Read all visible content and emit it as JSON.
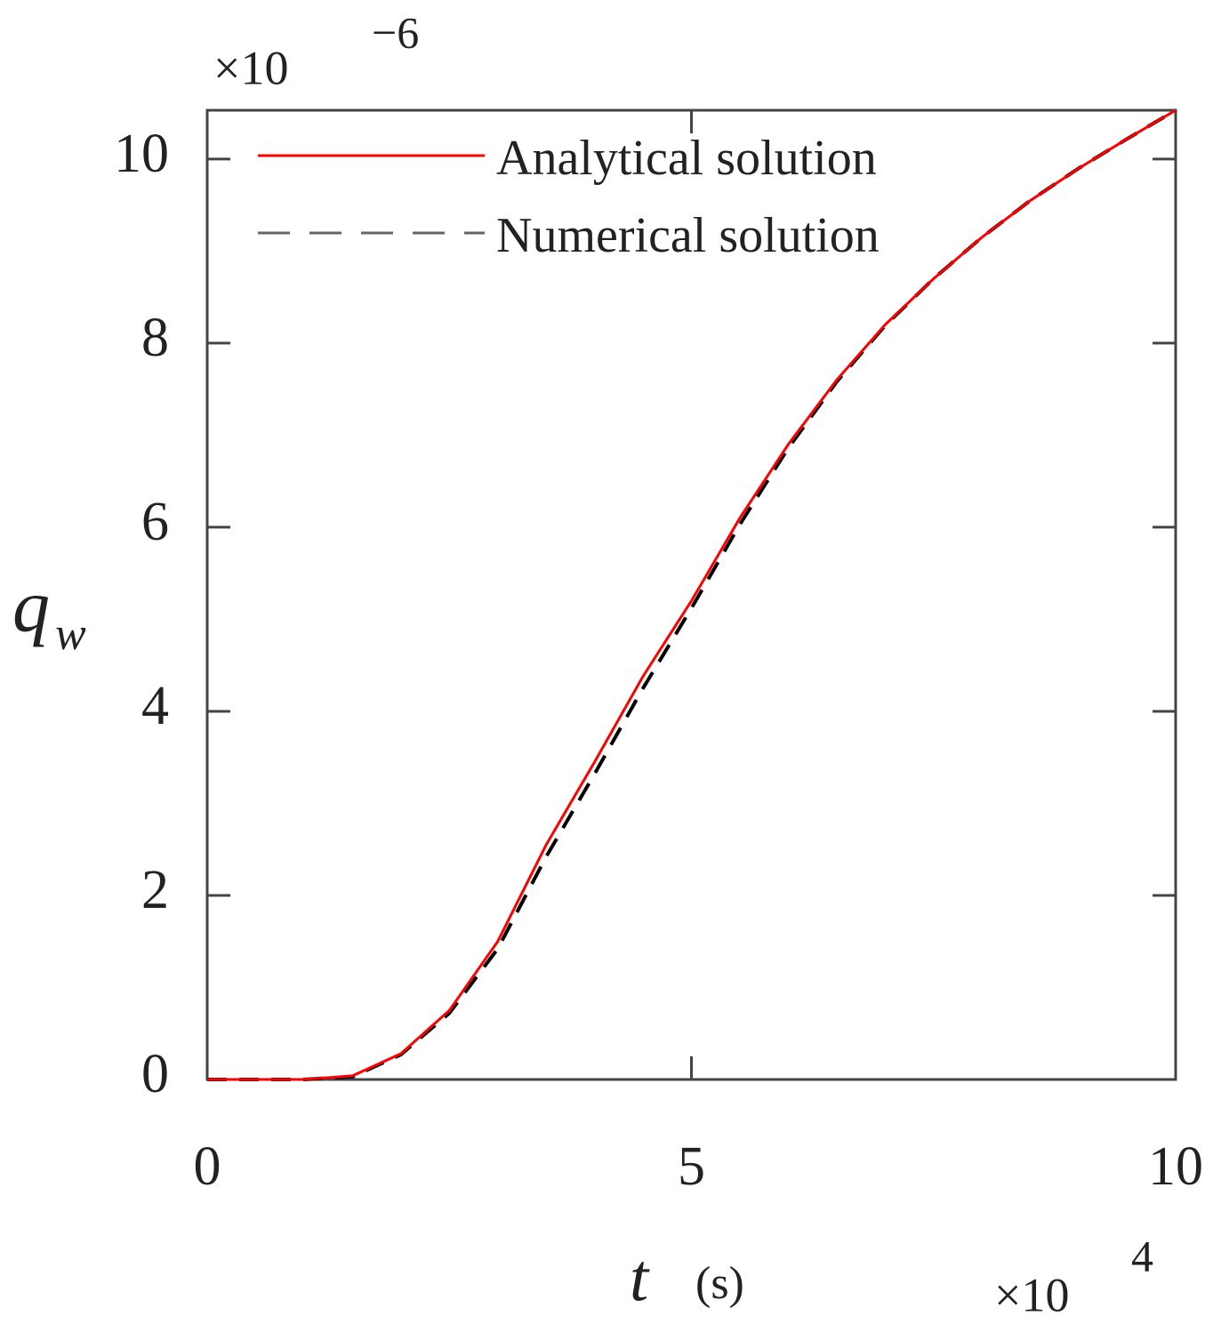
{
  "chart_data": {
    "type": "line",
    "x": [
      0,
      0.5,
      1,
      1.5,
      2,
      2.5,
      3,
      3.5,
      4,
      4.5,
      5,
      5.5,
      6,
      6.5,
      7,
      7.5,
      8,
      8.5,
      9,
      9.5,
      10
    ],
    "series": [
      {
        "name": "Numerical solution",
        "color": "#000000",
        "legend_color": "#666666",
        "linestyle": "dashed",
        "values": [
          0,
          0,
          0,
          0.03,
          0.27,
          0.72,
          1.42,
          2.42,
          3.32,
          4.25,
          5.12,
          6.03,
          6.86,
          7.58,
          8.19,
          8.7,
          9.15,
          9.55,
          9.9,
          10.22,
          10.53
        ]
      },
      {
        "name": "Analytical solution",
        "color": "#ff0000",
        "legend_color": "#ff0000",
        "linestyle": "solid",
        "values": [
          0,
          0,
          0,
          0.04,
          0.28,
          0.75,
          1.5,
          2.55,
          3.45,
          4.38,
          5.2,
          6.1,
          6.9,
          7.6,
          8.2,
          8.7,
          9.15,
          9.55,
          9.9,
          10.22,
          10.53
        ]
      }
    ],
    "xlim": [
      0,
      10
    ],
    "xticks": [
      0,
      5,
      10
    ],
    "ylim": [
      0,
      10.53
    ],
    "yticks": [
      0,
      2,
      4,
      6,
      8,
      10
    ],
    "xlabel": "t",
    "xlabel_unit": "(s)",
    "ylabel": "q",
    "ylabel_subscript": "w",
    "x_multiplier": "×10",
    "x_multiplier_exponent": "4",
    "y_multiplier": "×10",
    "y_multiplier_exponent": "−6",
    "legend": "upper left"
  }
}
